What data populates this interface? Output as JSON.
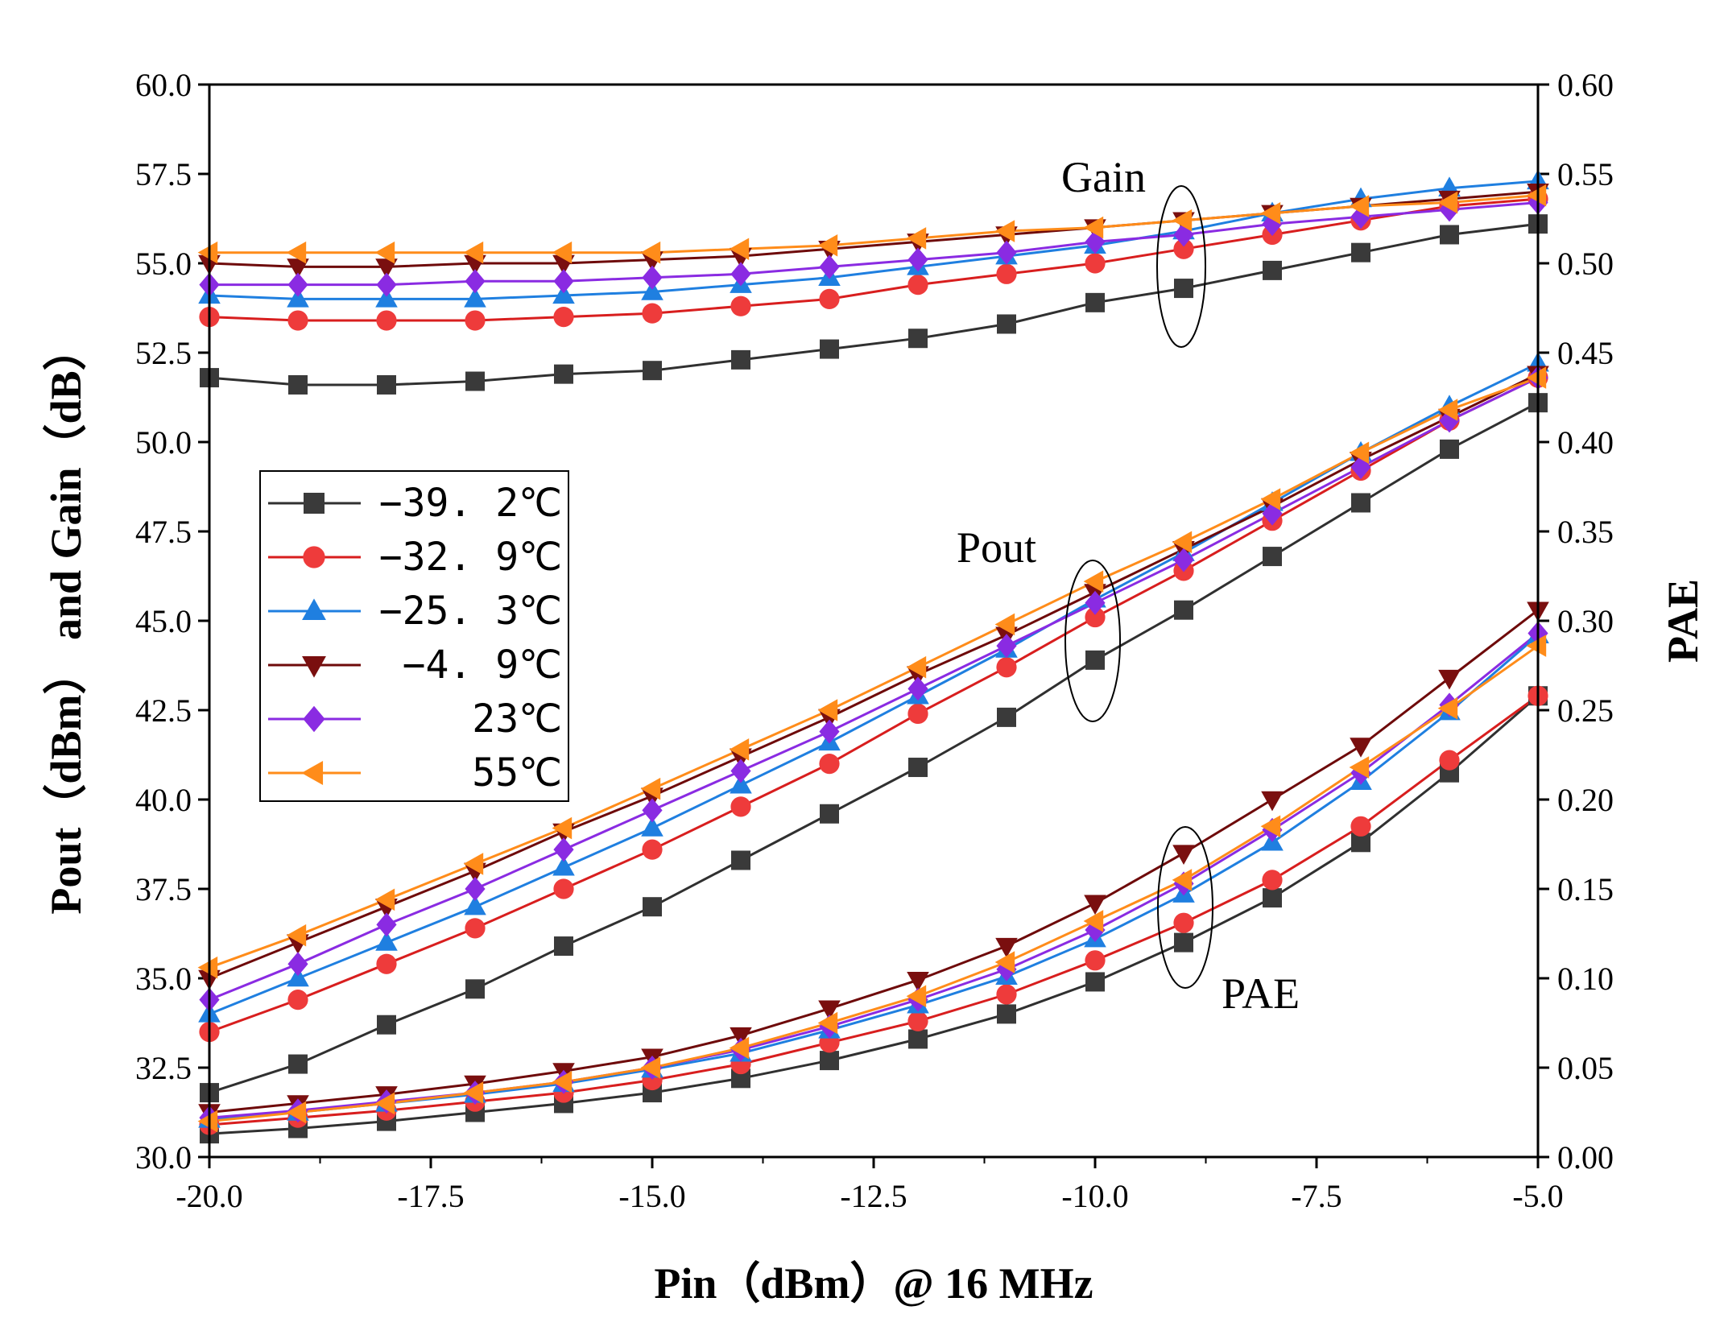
{
  "chart_data": {
    "type": "line",
    "title": "",
    "xlabel": "Pin（dBm）@ 16 MHz",
    "ylabel": "Pout（dBm） and Gain（dB）",
    "y2label": "PAE",
    "xlim": [
      -20.0,
      -5.0
    ],
    "ylim": [
      30.0,
      60.0
    ],
    "y2lim": [
      0.0,
      0.6
    ],
    "x_ticks": [
      "-20.0",
      "-17.5",
      "-15.0",
      "-12.5",
      "-10.0",
      "-7.5",
      "-5.0"
    ],
    "y_ticks": [
      "30.0",
      "32.5",
      "35.0",
      "37.5",
      "40.0",
      "42.5",
      "45.0",
      "47.5",
      "50.0",
      "52.5",
      "55.0",
      "57.5",
      "60.0"
    ],
    "y2_ticks": [
      "0.00",
      "0.05",
      "0.10",
      "0.15",
      "0.20",
      "0.25",
      "0.30",
      "0.35",
      "0.40",
      "0.45",
      "0.50",
      "0.55",
      "0.60"
    ],
    "x": [
      -20,
      -19,
      -18,
      -17,
      -16,
      -15,
      -14,
      -13,
      -12,
      -11,
      -10,
      -9,
      -8,
      -7,
      -6,
      -5
    ],
    "legend_position": "middle-left",
    "annotations": [
      {
        "label": "Gain",
        "x": -10.5,
        "y": 57.6
      },
      {
        "label": "Pout",
        "x": -12.0,
        "y": 47.3
      },
      {
        "label": "PAE",
        "x": -8.0,
        "y": 34.5
      }
    ],
    "series": [
      {
        "name": "−39. 2℃",
        "color": "#3a3a3a",
        "line_color": "#303030",
        "marker": "square",
        "gain": [
          51.8,
          51.6,
          51.6,
          51.7,
          51.9,
          52.0,
          52.3,
          52.6,
          52.9,
          53.3,
          53.9,
          54.3,
          54.8,
          55.3,
          55.8,
          56.1
        ],
        "pout": [
          31.8,
          32.6,
          33.7,
          34.7,
          35.9,
          37.0,
          38.3,
          39.6,
          40.9,
          42.3,
          43.9,
          45.3,
          46.8,
          48.3,
          49.8,
          51.1
        ],
        "pae": [
          0.013,
          0.016,
          0.02,
          0.025,
          0.03,
          0.036,
          0.044,
          0.054,
          0.066,
          0.08,
          0.098,
          0.12,
          0.145,
          0.176,
          0.215,
          0.258
        ]
      },
      {
        "name": "−32. 9℃",
        "color": "#ee3b3b",
        "line_color": "#d81e1e",
        "marker": "circle",
        "gain": [
          53.5,
          53.4,
          53.4,
          53.4,
          53.5,
          53.6,
          53.8,
          54.0,
          54.4,
          54.7,
          55.0,
          55.4,
          55.8,
          56.2,
          56.6,
          56.8
        ],
        "pout": [
          33.5,
          34.4,
          35.4,
          36.4,
          37.5,
          38.6,
          39.8,
          41.0,
          42.4,
          43.7,
          45.1,
          46.4,
          47.8,
          49.2,
          50.6,
          51.8
        ],
        "pae": [
          0.018,
          0.022,
          0.026,
          0.031,
          0.036,
          0.043,
          0.052,
          0.064,
          0.076,
          0.091,
          0.11,
          0.131,
          0.155,
          0.185,
          0.222,
          0.258
        ]
      },
      {
        "name": "−25. 3℃",
        "color": "#1f7fe0",
        "line_color": "#1f7fe0",
        "marker": "triangle-up",
        "gain": [
          54.1,
          54.0,
          54.0,
          54.0,
          54.1,
          54.2,
          54.4,
          54.6,
          54.9,
          55.2,
          55.5,
          55.9,
          56.4,
          56.8,
          57.1,
          57.3
        ],
        "pout": [
          34.0,
          35.0,
          36.0,
          37.0,
          38.1,
          39.2,
          40.4,
          41.6,
          42.9,
          44.2,
          45.6,
          46.9,
          48.3,
          49.7,
          51.0,
          52.2
        ],
        "pae": [
          0.021,
          0.025,
          0.03,
          0.035,
          0.041,
          0.049,
          0.058,
          0.071,
          0.085,
          0.101,
          0.122,
          0.147,
          0.176,
          0.21,
          0.249,
          0.292
        ]
      },
      {
        "name": "−4. 9℃",
        "color": "#7a0f0f",
        "line_color": "#6e0a0a",
        "marker": "triangle-down",
        "gain": [
          55.0,
          54.9,
          54.9,
          55.0,
          55.0,
          55.1,
          55.2,
          55.4,
          55.6,
          55.8,
          56.0,
          56.2,
          56.4,
          56.6,
          56.8,
          57.0
        ],
        "pout": [
          35.0,
          36.0,
          37.0,
          38.0,
          39.1,
          40.1,
          41.2,
          42.3,
          43.5,
          44.6,
          45.8,
          47.0,
          48.2,
          49.5,
          50.7,
          51.9
        ],
        "pae": [
          0.025,
          0.03,
          0.035,
          0.041,
          0.048,
          0.056,
          0.068,
          0.083,
          0.099,
          0.118,
          0.142,
          0.17,
          0.2,
          0.23,
          0.268,
          0.306
        ]
      },
      {
        "name": "23℃",
        "color": "#8a2be2",
        "line_color": "#8a2be2",
        "marker": "diamond",
        "gain": [
          54.4,
          54.4,
          54.4,
          54.5,
          54.5,
          54.6,
          54.7,
          54.9,
          55.1,
          55.3,
          55.6,
          55.8,
          56.1,
          56.3,
          56.5,
          56.7
        ],
        "pout": [
          34.4,
          35.4,
          36.5,
          37.5,
          38.6,
          39.7,
          40.8,
          41.9,
          43.1,
          44.3,
          45.5,
          46.7,
          48.0,
          49.3,
          50.6,
          51.8
        ],
        "pae": [
          0.022,
          0.026,
          0.031,
          0.036,
          0.042,
          0.05,
          0.06,
          0.073,
          0.088,
          0.105,
          0.127,
          0.153,
          0.183,
          0.215,
          0.253,
          0.293
        ]
      },
      {
        "name": "55℃",
        "color": "#ff8c1a",
        "line_color": "#ff8c1a",
        "marker": "triangle-left",
        "gain": [
          55.3,
          55.3,
          55.3,
          55.3,
          55.3,
          55.3,
          55.4,
          55.5,
          55.7,
          55.9,
          56.0,
          56.2,
          56.4,
          56.6,
          56.7,
          56.9
        ],
        "pout": [
          35.3,
          36.2,
          37.2,
          38.2,
          39.2,
          40.3,
          41.4,
          42.5,
          43.7,
          44.9,
          46.1,
          47.2,
          48.4,
          49.7,
          50.9,
          51.8
        ],
        "pae": [
          0.02,
          0.025,
          0.03,
          0.036,
          0.042,
          0.05,
          0.061,
          0.075,
          0.09,
          0.109,
          0.132,
          0.155,
          0.185,
          0.218,
          0.251,
          0.286
        ]
      }
    ]
  }
}
